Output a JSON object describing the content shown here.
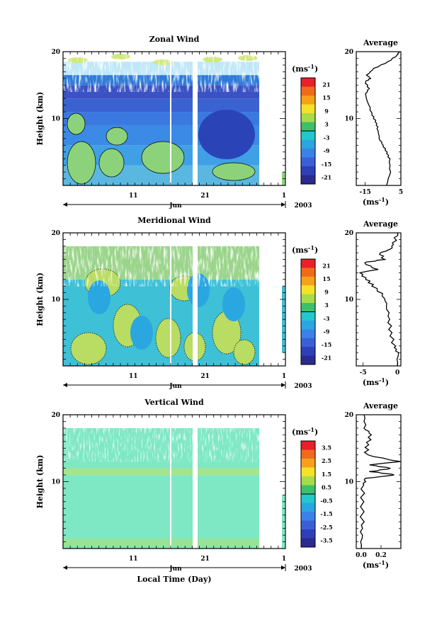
{
  "chart_data": [
    {
      "type": "heatmap",
      "title": "Zonal Wind",
      "ylabel": "Height (km)",
      "ylim": [
        0,
        20
      ],
      "yticks": [
        10,
        20
      ],
      "xticks": [
        "11",
        "21",
        "1"
      ],
      "xlabel_month": "Jun",
      "year_label": "2003",
      "colorbar_unit": "(ms",
      "colorbar_unit_sup": "-1",
      "colorbar_ticks": [
        "21",
        "15",
        "9",
        "3",
        "-3",
        "-9",
        "-15",
        "-21"
      ],
      "average": {
        "title": "Average",
        "xticks": [
          "-15",
          "5"
        ],
        "xlim": [
          -20,
          5
        ],
        "unit": "(ms",
        "unit_sup": "-1",
        "profile": [
          [
            -3,
            0
          ],
          [
            -1,
            2
          ],
          [
            -1.5,
            4
          ],
          [
            -3,
            5
          ],
          [
            -5,
            6
          ],
          [
            -7,
            7
          ],
          [
            -8,
            8.5
          ],
          [
            -9,
            9.5
          ],
          [
            -11,
            10.5
          ],
          [
            -13,
            12
          ],
          [
            -15,
            13.5
          ],
          [
            -13,
            14.5
          ],
          [
            -15,
            15.5
          ],
          [
            -12,
            16
          ],
          [
            -14,
            16.5
          ],
          [
            -10,
            17.5
          ],
          [
            -2,
            18.5
          ],
          [
            3,
            19.5
          ],
          [
            4,
            20
          ]
        ]
      }
    },
    {
      "type": "heatmap",
      "title": "Meridional Wind",
      "ylabel": "Height (km)",
      "ylim": [
        0,
        20
      ],
      "yticks": [
        10,
        20
      ],
      "xticks": [
        "11",
        "21",
        "1"
      ],
      "xlabel_month": "Jun",
      "year_label": "2003",
      "colorbar_unit": "(ms",
      "colorbar_unit_sup": "-1",
      "colorbar_ticks": [
        "21",
        "15",
        "9",
        "3",
        "-3",
        "-9",
        "-15",
        "-21"
      ],
      "average": {
        "title": "Average",
        "xticks": [
          "-5",
          "0"
        ],
        "xlim": [
          -6,
          0.5
        ],
        "unit": "(ms",
        "unit_sup": "-1",
        "profile": [
          [
            0,
            0
          ],
          [
            0,
            2
          ],
          [
            -0.5,
            3
          ],
          [
            -1,
            5
          ],
          [
            -1.2,
            7
          ],
          [
            -1.5,
            9
          ],
          [
            -2,
            10.5
          ],
          [
            -3.5,
            12
          ],
          [
            -4.5,
            13
          ],
          [
            -5.5,
            14
          ],
          [
            -3,
            14.5
          ],
          [
            -5,
            15.5
          ],
          [
            -2,
            16
          ],
          [
            -2.5,
            17
          ],
          [
            -1,
            17.5
          ],
          [
            -0.5,
            18.5
          ],
          [
            0,
            20
          ]
        ]
      }
    },
    {
      "type": "heatmap",
      "title": "Vertical Wind",
      "ylabel": "Height (km)",
      "xlabel": "Local Time (Day)",
      "ylim": [
        0,
        20
      ],
      "yticks": [
        10,
        20
      ],
      "xticks": [
        "11",
        "21",
        "1"
      ],
      "xlabel_month": "Jun",
      "year_label": "2003",
      "colorbar_unit": "(ms",
      "colorbar_unit_sup": "-1",
      "colorbar_ticks": [
        "3.5",
        "2.5",
        "1.5",
        "0.5",
        "-0.5",
        "-1.5",
        "-2.5",
        "-3.5"
      ],
      "average": {
        "title": "Average",
        "xticks": [
          "0.0",
          "0.2"
        ],
        "xlim": [
          -0.05,
          0.4
        ],
        "unit": "(ms",
        "unit_sup": "-1",
        "profile": [
          [
            0,
            0
          ],
          [
            0,
            2
          ],
          [
            0.01,
            4
          ],
          [
            0.01,
            7
          ],
          [
            0.02,
            9.5
          ],
          [
            0.05,
            10.5
          ],
          [
            0.35,
            11
          ],
          [
            0.1,
            11.5
          ],
          [
            0.3,
            12
          ],
          [
            0.08,
            12.5
          ],
          [
            0.38,
            13
          ],
          [
            0.05,
            14
          ],
          [
            0.06,
            15.5
          ],
          [
            0.1,
            17
          ],
          [
            0.04,
            18
          ],
          [
            0.03,
            20
          ]
        ]
      }
    }
  ]
}
